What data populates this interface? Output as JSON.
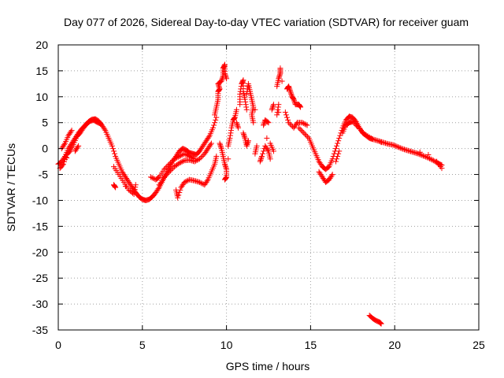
{
  "chart_data": {
    "type": "scatter",
    "title": "Day 077 of 2026, Sidereal Day-to-day VTEC variation (SDTVAR) for receiver guam",
    "xlabel": "GPS time / hours",
    "ylabel": "SDTVAR / TECUs",
    "xlim": [
      0,
      25
    ],
    "ylim": [
      -35,
      20
    ],
    "x_ticks": [
      "0",
      "5",
      "10",
      "15",
      "20",
      "25"
    ],
    "y_ticks": [
      "20",
      "15",
      "10",
      "5",
      "0",
      "-5",
      "-10",
      "-15",
      "-20",
      "-25",
      "-30",
      "-35"
    ],
    "grid": true,
    "marker": "plus",
    "color": "#ff0000",
    "series": [
      {
        "name": "SDTVAR",
        "points": [
          [
            0.0,
            -3.0
          ],
          [
            0.2,
            -2.5
          ],
          [
            0.4,
            -1.5
          ],
          [
            0.6,
            0.0
          ],
          [
            0.8,
            1.0
          ],
          [
            1.0,
            2.0
          ],
          [
            1.2,
            3.0
          ],
          [
            1.4,
            3.8
          ],
          [
            1.6,
            4.5
          ],
          [
            1.8,
            5.2
          ],
          [
            2.0,
            5.6
          ],
          [
            2.2,
            5.7
          ],
          [
            2.4,
            5.3
          ],
          [
            2.6,
            4.5
          ],
          [
            2.8,
            3.5
          ],
          [
            3.0,
            2.0
          ],
          [
            3.2,
            0.5
          ],
          [
            3.4,
            -1.5
          ],
          [
            3.6,
            -3.0
          ],
          [
            3.8,
            -4.5
          ],
          [
            4.0,
            -5.5
          ],
          [
            4.2,
            -6.5
          ],
          [
            4.4,
            -7.5
          ],
          [
            4.6,
            -8.5
          ],
          [
            4.8,
            -9.3
          ],
          [
            5.0,
            -9.8
          ],
          [
            5.2,
            -10.0
          ],
          [
            5.4,
            -9.8
          ],
          [
            5.6,
            -9.3
          ],
          [
            5.8,
            -8.5
          ],
          [
            6.0,
            -7.5
          ],
          [
            6.2,
            -6.2
          ],
          [
            6.4,
            -5.0
          ],
          [
            6.6,
            -3.8
          ],
          [
            6.8,
            -2.5
          ],
          [
            7.0,
            -1.5
          ],
          [
            7.2,
            -0.5
          ],
          [
            7.4,
            0.0
          ],
          [
            7.6,
            -0.3
          ],
          [
            7.8,
            -0.8
          ],
          [
            8.0,
            -1.0
          ],
          [
            8.2,
            -1.2
          ],
          [
            8.4,
            -0.5
          ],
          [
            8.6,
            0.5
          ],
          [
            8.8,
            1.5
          ],
          [
            9.0,
            2.5
          ],
          [
            9.2,
            4.0
          ],
          [
            9.4,
            6.0
          ],
          [
            0.1,
            -3.8
          ],
          [
            0.3,
            -3.0
          ],
          [
            0.5,
            -1.2
          ],
          [
            0.7,
            -0.5
          ],
          [
            0.9,
            0.8
          ],
          [
            1.1,
            2.3
          ],
          [
            1.3,
            3.0
          ],
          [
            1.5,
            4.0
          ],
          [
            1.7,
            4.8
          ],
          [
            1.9,
            5.3
          ],
          [
            2.1,
            5.5
          ],
          [
            2.3,
            5.1
          ],
          [
            2.5,
            4.8
          ],
          [
            0.2,
            0.0
          ],
          [
            0.4,
            1.0
          ],
          [
            0.6,
            2.5
          ],
          [
            0.8,
            3.5
          ],
          [
            0.5,
            -1.8
          ],
          [
            1.0,
            -0.5
          ],
          [
            1.2,
            0.5
          ],
          [
            3.3,
            -3.5
          ],
          [
            3.6,
            -5.0
          ],
          [
            3.9,
            -6.5
          ],
          [
            4.2,
            -8.0
          ],
          [
            4.5,
            -8.8
          ],
          [
            4.6,
            -7.0
          ],
          [
            4.0,
            -7.3
          ],
          [
            3.3,
            -7.0
          ],
          [
            3.4,
            -7.5
          ],
          [
            5.5,
            -5.5
          ],
          [
            5.8,
            -6.0
          ],
          [
            6.0,
            -5.5
          ],
          [
            6.3,
            -4.0
          ],
          [
            6.6,
            -3.0
          ],
          [
            6.9,
            -2.0
          ],
          [
            7.2,
            -1.5
          ],
          [
            7.5,
            -1.0
          ],
          [
            7.8,
            -1.5
          ],
          [
            8.1,
            -2.0
          ],
          [
            7.0,
            -8.0
          ],
          [
            7.1,
            -9.5
          ],
          [
            7.3,
            -7.5
          ],
          [
            7.5,
            -6.5
          ],
          [
            7.8,
            -6.0
          ],
          [
            8.1,
            -6.2
          ],
          [
            8.4,
            -6.5
          ],
          [
            8.7,
            -7.0
          ],
          [
            8.9,
            -6.0
          ],
          [
            9.1,
            -4.5
          ],
          [
            9.3,
            -3.0
          ],
          [
            9.4,
            -1.5
          ],
          [
            6.0,
            -7.0
          ],
          [
            6.3,
            -5.5
          ],
          [
            6.6,
            -4.5
          ],
          [
            6.9,
            -3.5
          ],
          [
            7.2,
            -2.8
          ],
          [
            7.5,
            -2.3
          ],
          [
            7.8,
            -2.2
          ],
          [
            8.1,
            -2.5
          ],
          [
            8.4,
            -2.0
          ],
          [
            8.7,
            -1.0
          ],
          [
            8.9,
            0.0
          ],
          [
            9.1,
            1.0
          ],
          [
            9.3,
            6.5
          ],
          [
            9.4,
            8.0
          ],
          [
            9.5,
            9.5
          ],
          [
            9.5,
            11.0
          ],
          [
            9.6,
            11.5
          ],
          [
            9.5,
            12.5
          ],
          [
            9.7,
            13.0
          ],
          [
            9.8,
            14.0
          ],
          [
            9.8,
            15.5
          ],
          [
            9.9,
            16.2
          ],
          [
            9.9,
            14.5
          ],
          [
            10.0,
            13.5
          ],
          [
            9.6,
            1.0
          ],
          [
            9.7,
            0.0
          ],
          [
            9.8,
            -1.5
          ],
          [
            9.9,
            -3.0
          ],
          [
            10.0,
            -4.0
          ],
          [
            10.0,
            -5.5
          ],
          [
            9.9,
            -6.0
          ],
          [
            10.1,
            -2.0
          ],
          [
            10.1,
            0.5
          ],
          [
            10.2,
            2.0
          ],
          [
            10.3,
            4.0
          ],
          [
            10.4,
            5.5
          ],
          [
            10.5,
            6.0
          ],
          [
            10.6,
            7.5
          ],
          [
            10.6,
            5.0
          ],
          [
            10.7,
            4.0
          ],
          [
            10.8,
            8.5
          ],
          [
            10.8,
            10.5
          ],
          [
            10.9,
            12.5
          ],
          [
            11.0,
            13.2
          ],
          [
            11.0,
            11.0
          ],
          [
            11.1,
            9.5
          ],
          [
            11.2,
            7.5
          ],
          [
            11.2,
            10.5
          ],
          [
            11.3,
            12.5
          ],
          [
            11.4,
            11.0
          ],
          [
            11.5,
            9.5
          ],
          [
            11.6,
            8.0
          ],
          [
            11.5,
            6.5
          ],
          [
            11.6,
            5.0
          ],
          [
            11.7,
            7.5
          ],
          [
            11.0,
            3.0
          ],
          [
            11.1,
            2.0
          ],
          [
            11.2,
            0.5
          ],
          [
            11.3,
            1.5
          ],
          [
            11.7,
            -1.0
          ],
          [
            11.8,
            0.5
          ],
          [
            12.0,
            -2.5
          ],
          [
            12.1,
            -1.5
          ],
          [
            12.3,
            0.5
          ],
          [
            12.5,
            -0.5
          ],
          [
            12.6,
            -2.0
          ],
          [
            12.4,
            2.0
          ],
          [
            12.2,
            4.5
          ],
          [
            12.3,
            5.5
          ],
          [
            12.5,
            5.0
          ],
          [
            12.7,
            7.5
          ],
          [
            12.8,
            8.5
          ],
          [
            12.6,
            1.0
          ],
          [
            12.8,
            -0.5
          ],
          [
            13.0,
            6.5
          ],
          [
            13.1,
            8.5
          ],
          [
            13.0,
            12.0
          ],
          [
            13.1,
            13.5
          ],
          [
            13.2,
            14.5
          ],
          [
            13.2,
            15.5
          ],
          [
            13.3,
            13.0
          ],
          [
            13.1,
            7.0
          ],
          [
            13.6,
            11.5
          ],
          [
            13.7,
            12.0
          ],
          [
            13.8,
            11.0
          ],
          [
            13.9,
            10.0
          ],
          [
            14.0,
            9.5
          ],
          [
            14.1,
            8.5
          ],
          [
            14.3,
            8.5
          ],
          [
            14.4,
            8.0
          ],
          [
            13.5,
            7.0
          ],
          [
            13.7,
            5.0
          ],
          [
            14.0,
            4.0
          ],
          [
            14.2,
            5.0
          ],
          [
            14.5,
            5.0
          ],
          [
            14.8,
            4.5
          ],
          [
            14.3,
            4.0
          ],
          [
            14.6,
            3.0
          ],
          [
            14.9,
            2.0
          ],
          [
            15.1,
            0.5
          ],
          [
            15.3,
            -1.0
          ],
          [
            15.5,
            -2.5
          ],
          [
            15.7,
            -3.5
          ],
          [
            15.9,
            -4.0
          ],
          [
            16.1,
            -3.5
          ],
          [
            16.3,
            -2.0
          ],
          [
            16.5,
            0.0
          ],
          [
            16.7,
            2.0
          ],
          [
            16.9,
            4.0
          ],
          [
            17.1,
            5.5
          ],
          [
            17.3,
            6.2
          ],
          [
            17.5,
            6.0
          ],
          [
            17.7,
            5.2
          ],
          [
            17.9,
            4.0
          ],
          [
            18.1,
            3.0
          ],
          [
            18.3,
            2.5
          ],
          [
            18.5,
            2.0
          ],
          [
            18.7,
            1.8
          ],
          [
            19.0,
            1.5
          ],
          [
            19.3,
            1.2
          ],
          [
            19.6,
            0.9
          ],
          [
            19.9,
            0.7
          ],
          [
            20.2,
            0.3
          ],
          [
            20.5,
            -0.1
          ],
          [
            20.8,
            -0.4
          ],
          [
            21.1,
            -0.7
          ],
          [
            21.4,
            -1.0
          ],
          [
            21.7,
            -1.4
          ],
          [
            22.0,
            -1.8
          ],
          [
            22.3,
            -2.3
          ],
          [
            22.6,
            -2.9
          ],
          [
            22.8,
            -3.2
          ],
          [
            15.5,
            -4.5
          ],
          [
            15.7,
            -5.5
          ],
          [
            15.9,
            -6.5
          ],
          [
            16.1,
            -6.0
          ],
          [
            16.3,
            -5.0
          ],
          [
            16.5,
            -2.5
          ],
          [
            16.7,
            -0.5
          ],
          [
            16.9,
            3.0
          ],
          [
            17.1,
            4.5
          ],
          [
            17.3,
            5.0
          ],
          [
            17.5,
            5.2
          ],
          [
            17.8,
            4.2
          ],
          [
            18.2,
            2.8
          ],
          [
            18.6,
            2.0
          ],
          [
            19.2,
            1.2
          ],
          [
            21.5,
            -0.7
          ],
          [
            22.0,
            -1.2
          ],
          [
            22.5,
            -2.5
          ],
          [
            22.8,
            -3.8
          ],
          [
            18.5,
            -32.2
          ],
          [
            18.7,
            -32.8
          ],
          [
            18.9,
            -33.2
          ],
          [
            19.1,
            -33.5
          ],
          [
            19.2,
            -33.8
          ]
        ]
      }
    ]
  }
}
